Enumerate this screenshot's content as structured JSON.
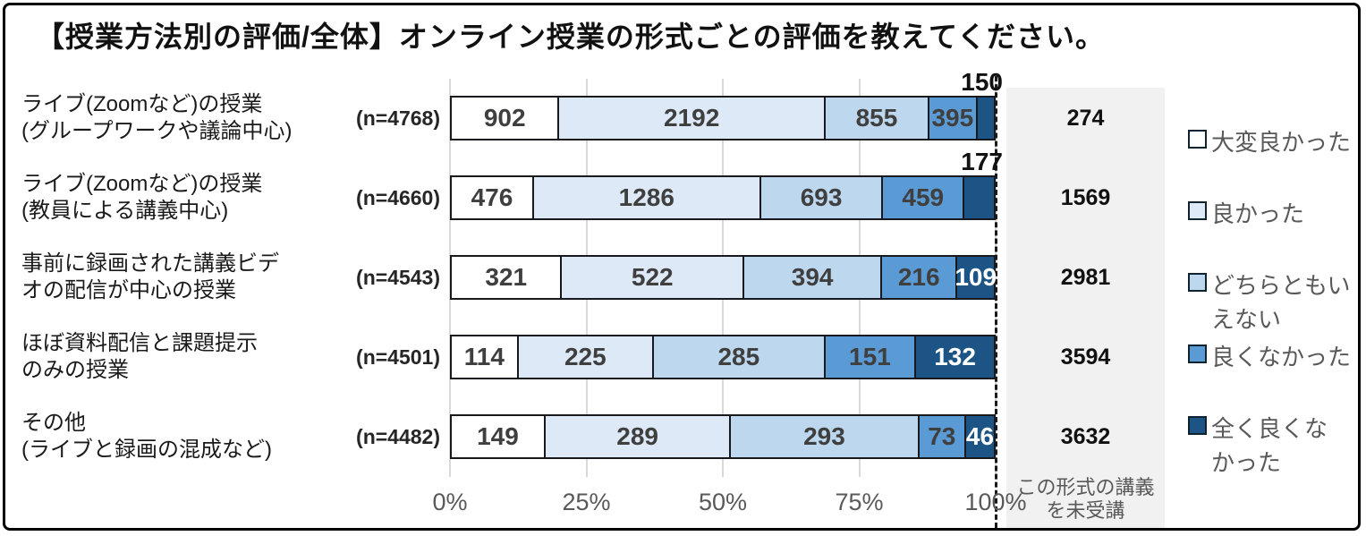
{
  "title": "【授業方法別の評価/全体】オンライン授業の形式ごとの評価を教えてください。",
  "chart_data": {
    "type": "bar",
    "orientation": "horizontal",
    "stacked": true,
    "note": "counts rendered as percent of row respondents (row sum = n minus not_taken)",
    "x_ticks": [
      "0%",
      "25%",
      "50%",
      "75%",
      "100%"
    ],
    "xlim": [
      0,
      100
    ],
    "grid": true,
    "legend_position": "right",
    "series_labels": [
      "大変良かった",
      "良かった",
      "どちらともいえない",
      "良くなかった",
      "全く良くなかった"
    ],
    "legend_display_labels": [
      "大変良かった",
      "良かった",
      "どちらともい\nえない",
      "良くなかった",
      "全く良くな\nかった"
    ],
    "series_colors": [
      "#ffffff",
      "#dde9f6",
      "#bdd7ee",
      "#5b9bd5",
      "#1b5485"
    ],
    "value_label_color": "#3f3f3f",
    "value_label_color_on_dark": "#ffffff",
    "not_taken_label": "この形式の講義を未受講",
    "rows": [
      {
        "category": "ライブ(Zoomなど)の授業\n(グループワークや議論中心)",
        "n_label": "(n=4768)",
        "values": [
          902,
          2192,
          855,
          395,
          150
        ],
        "not_taken": 274,
        "last_label_outside": true
      },
      {
        "category": "ライブ(Zoomなど)の授業\n(教員による講義中心)",
        "n_label": "(n=4660)",
        "values": [
          476,
          1286,
          693,
          459,
          177
        ],
        "not_taken": 1569,
        "last_label_outside": true
      },
      {
        "category": "事前に録画された講義ビデ\nオの配信が中心の授業",
        "n_label": "(n=4543)",
        "values": [
          321,
          522,
          394,
          216,
          109
        ],
        "not_taken": 2981,
        "last_label_outside": false
      },
      {
        "category": "ほぼ資料配信と課題提示\nのみの授業",
        "n_label": "(n=4501)",
        "values": [
          114,
          225,
          285,
          151,
          132
        ],
        "not_taken": 3594,
        "last_label_outside": false
      },
      {
        "category": "その他\n(ライブと録画の混成など)",
        "n_label": "(n=4482)",
        "values": [
          149,
          289,
          293,
          73,
          46
        ],
        "not_taken": 3632,
        "last_label_outside": false
      }
    ]
  }
}
